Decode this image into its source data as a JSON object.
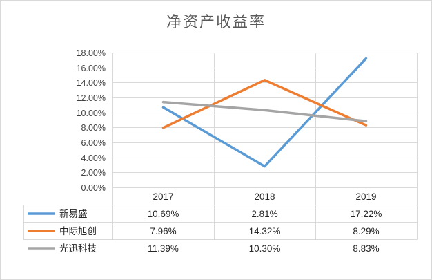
{
  "chart_data": {
    "type": "line",
    "title": "净资产收益率",
    "categories": [
      "2017",
      "2018",
      "2019"
    ],
    "ylim": [
      0,
      18
    ],
    "ytick_labels": [
      "0.00%",
      "2.00%",
      "4.00%",
      "6.00%",
      "8.00%",
      "10.00%",
      "12.00%",
      "14.00%",
      "16.00%",
      "18.00%"
    ],
    "grid": true,
    "legend": "data-table",
    "series": [
      {
        "name": "新易盛",
        "color": "#5B9BD5",
        "values": [
          10.69,
          2.81,
          17.22
        ],
        "labels": [
          "10.69%",
          "2.81%",
          "17.22%"
        ]
      },
      {
        "name": "中际旭创",
        "color": "#ED7D31",
        "values": [
          7.96,
          14.32,
          8.29
        ],
        "labels": [
          "7.96%",
          "14.32%",
          "8.29%"
        ]
      },
      {
        "name": "光迅科技",
        "color": "#A5A5A5",
        "values": [
          11.39,
          10.3,
          8.83
        ],
        "labels": [
          "11.39%",
          "10.30%",
          "8.83%"
        ]
      }
    ]
  }
}
